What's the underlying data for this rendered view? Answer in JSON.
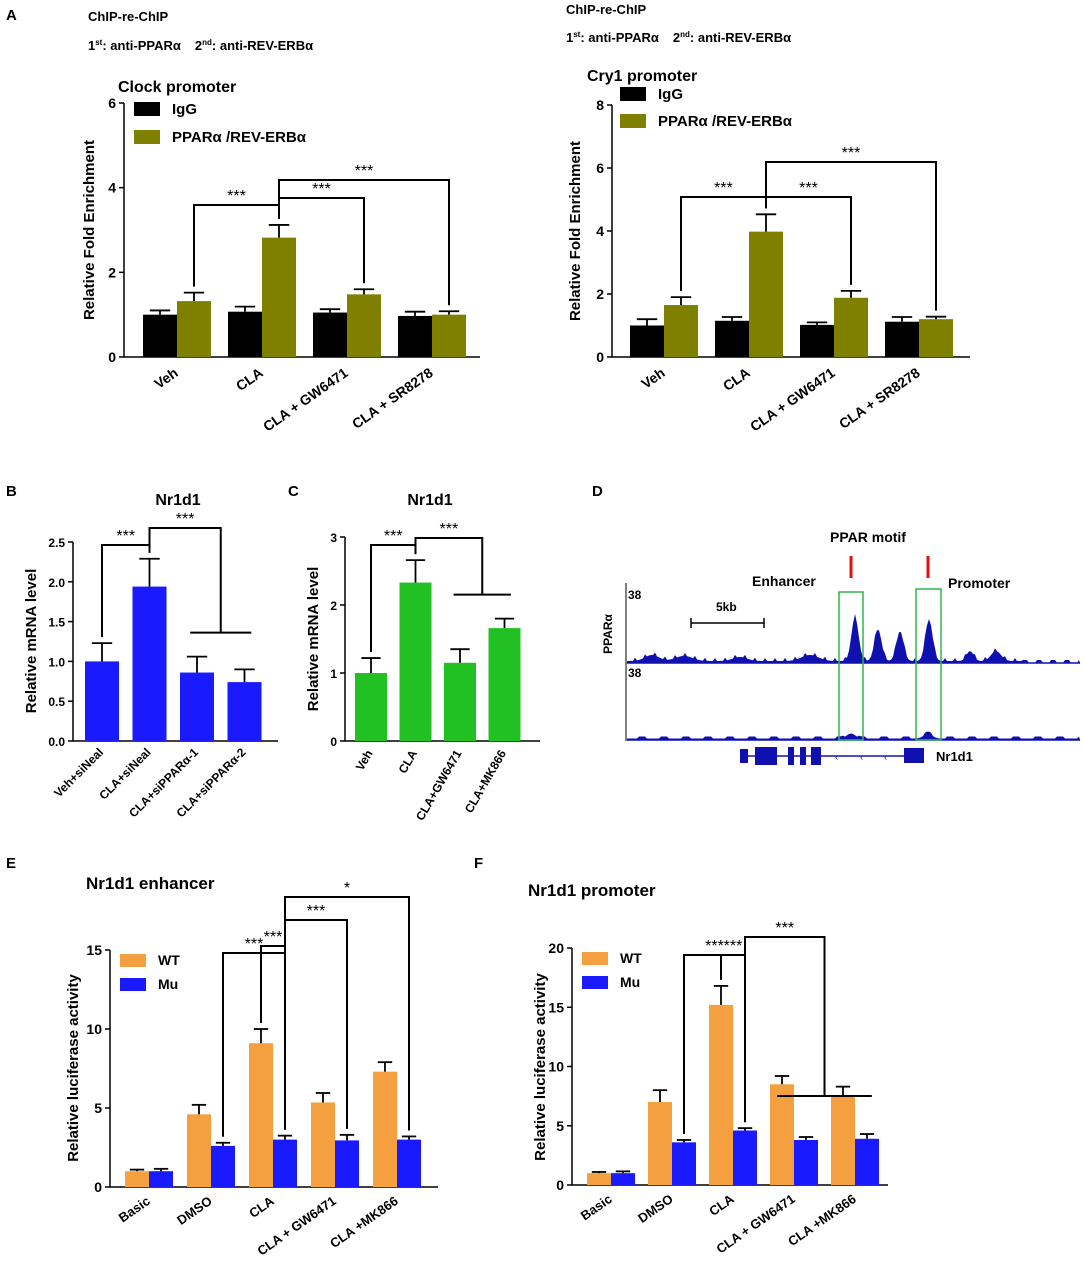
{
  "panel_letters": [
    "A",
    "B",
    "C",
    "D",
    "E",
    "F"
  ],
  "panelA": {
    "method": "ChIP-re-ChIP",
    "antibodies_1st": "1",
    "antibodies_1st_sup": "st",
    "antibodies_1st_text": ": anti-PPARα",
    "antibodies_2nd": "2",
    "antibodies_2nd_sup": "nd",
    "antibodies_2nd_text": ": anti-REV-ERBα"
  },
  "panelD": {
    "title": "PPAR motif",
    "enhancer_label": "Enhancer",
    "promoter_label": "Promoter",
    "scale_label": "5kb",
    "track_label": "PPARα",
    "track1_max": "38",
    "track2_max": "38",
    "gene_label": "Nr1d1",
    "colors": {
      "track": "#1010b0",
      "box": "#2fb84a",
      "motif": "#e01010"
    }
  },
  "chart_data": [
    {
      "id": "A1",
      "type": "bar",
      "title": "Clock promoter",
      "ylabel": "Relative Fold Enrichment",
      "ylim": [
        0,
        6
      ],
      "yticks": [
        "0",
        "2",
        "4",
        "6"
      ],
      "categories": [
        "Veh",
        "CLA",
        "CLA + GW6471",
        "CLA + SR8278"
      ],
      "series": [
        {
          "name": "IgG",
          "color": "#000000",
          "values": [
            1.0,
            1.07,
            1.05,
            0.97
          ],
          "errors": [
            0.1,
            0.12,
            0.08,
            0.1
          ]
        },
        {
          "name": "PPARα /REV-ERBα",
          "color": "#808000",
          "values": [
            1.32,
            2.82,
            1.48,
            1.0
          ],
          "errors": [
            0.2,
            0.3,
            0.12,
            0.08
          ]
        }
      ],
      "significance": [
        {
          "from": 0,
          "to": 1,
          "label": "***"
        },
        {
          "from": 1,
          "to": 2,
          "label": "***"
        },
        {
          "from": 1,
          "to": 3,
          "label": "***"
        }
      ]
    },
    {
      "id": "A2",
      "type": "bar",
      "title": "Cry1 promoter",
      "ylabel": "Relative Fold Enrichment",
      "ylim": [
        0,
        8
      ],
      "yticks": [
        "0",
        "2",
        "4",
        "6",
        "8"
      ],
      "categories": [
        "Veh",
        "CLA",
        "CLA + GW6471",
        "CLA + SR8278"
      ],
      "series": [
        {
          "name": "IgG",
          "color": "#000000",
          "values": [
            1.0,
            1.15,
            1.02,
            1.12
          ],
          "errors": [
            0.2,
            0.12,
            0.08,
            0.15
          ]
        },
        {
          "name": "PPARα /REV-ERBα",
          "color": "#808000",
          "values": [
            1.65,
            3.98,
            1.88,
            1.2
          ],
          "errors": [
            0.25,
            0.55,
            0.22,
            0.08
          ]
        }
      ],
      "significance": [
        {
          "from": 0,
          "to": 1,
          "label": "***"
        },
        {
          "from": 1,
          "to": 2,
          "label": "***"
        },
        {
          "from": 1,
          "to": 3,
          "label": "***"
        }
      ]
    },
    {
      "id": "B",
      "type": "bar",
      "title": "Nr1d1",
      "ylabel": "Relative mRNA level",
      "ylim": [
        0,
        2.5
      ],
      "yticks": [
        "0.0",
        "0.5",
        "1.0",
        "1.5",
        "2.0",
        "2.5"
      ],
      "categories": [
        "Veh+siNeal",
        "CLA+siNeal",
        "CLA+siPPARα-1",
        "CLA+siPPARα-2"
      ],
      "series": [
        {
          "name": "",
          "color": "#1a1aff",
          "values": [
            1.0,
            1.94,
            0.86,
            0.74
          ],
          "errors": [
            0.23,
            0.35,
            0.2,
            0.16
          ]
        }
      ],
      "significance": [
        {
          "from": 0,
          "to": 1,
          "label": "***"
        },
        {
          "from": 1,
          "to": [
            2,
            3
          ],
          "label": "***"
        }
      ]
    },
    {
      "id": "C",
      "type": "bar",
      "title": "Nr1d1",
      "ylabel": "Relative mRNA level",
      "ylim": [
        0,
        3
      ],
      "yticks": [
        "0",
        "1",
        "2",
        "3"
      ],
      "categories": [
        "Veh",
        "CLA",
        "CLA+GW6471",
        "CLA+MK866"
      ],
      "series": [
        {
          "name": "",
          "color": "#22c022",
          "values": [
            1.0,
            2.33,
            1.15,
            1.66
          ],
          "errors": [
            0.22,
            0.33,
            0.2,
            0.14
          ]
        }
      ],
      "significance": [
        {
          "from": 0,
          "to": 1,
          "label": "***"
        },
        {
          "from": 1,
          "to": [
            2,
            3
          ],
          "label": "***"
        }
      ]
    },
    {
      "id": "E",
      "type": "bar",
      "title": "Nr1d1 enhancer",
      "ylabel": "Relative luciferase activity",
      "ylim": [
        0,
        15
      ],
      "yticks": [
        "0",
        "5",
        "10",
        "15"
      ],
      "categories": [
        "Basic",
        "DMSO",
        "CLA",
        "CLA + GW6471",
        "CLA +MK866"
      ],
      "series": [
        {
          "name": "WT",
          "color": "#f5a040",
          "values": [
            1.0,
            4.6,
            9.1,
            5.35,
            7.3
          ],
          "errors": [
            0.1,
            0.6,
            0.9,
            0.6,
            0.6
          ]
        },
        {
          "name": "Mu",
          "color": "#1a1aff",
          "values": [
            1.0,
            2.6,
            3.0,
            2.95,
            3.0
          ],
          "errors": [
            0.15,
            0.2,
            0.25,
            0.35,
            0.2
          ]
        }
      ],
      "significance": [
        {
          "from": 1,
          "to": 2,
          "label": "***"
        },
        {
          "from": 2,
          "to": 2,
          "mu": true,
          "label": "***"
        },
        {
          "from": 2,
          "to": 3,
          "label": "***"
        },
        {
          "from": 2,
          "to": 4,
          "label": "*"
        }
      ]
    },
    {
      "id": "F",
      "type": "bar",
      "title": "Nr1d1 promoter",
      "ylabel": "Relative luciferase activity",
      "ylim": [
        0,
        20
      ],
      "yticks": [
        "0",
        "5",
        "10",
        "15",
        "20"
      ],
      "categories": [
        "Basic",
        "DMSO",
        "CLA",
        "CLA + GW6471",
        "CLA +MK866"
      ],
      "series": [
        {
          "name": "WT",
          "color": "#f5a040",
          "values": [
            1.0,
            7.0,
            15.2,
            8.5,
            7.5
          ],
          "errors": [
            0.1,
            1.0,
            1.6,
            0.7,
            0.8
          ]
        },
        {
          "name": "Mu",
          "color": "#1a1aff",
          "values": [
            1.0,
            3.6,
            4.6,
            3.8,
            3.9
          ],
          "errors": [
            0.15,
            0.2,
            0.2,
            0.25,
            0.4
          ]
        }
      ],
      "significance": [
        {
          "from": 1,
          "to": 2,
          "label": "***"
        },
        {
          "from": 2,
          "to": 2,
          "mu": true,
          "label": "***"
        },
        {
          "from": 2,
          "to": [
            3,
            4
          ],
          "label": "***"
        }
      ]
    }
  ]
}
